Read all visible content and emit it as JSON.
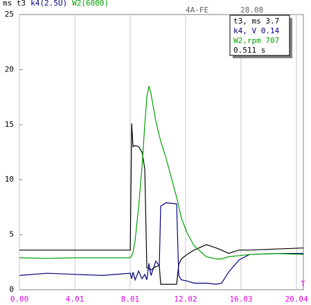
{
  "chart_data": {
    "type": "line",
    "engine": "4A-FE",
    "date": "28.08",
    "cursor_label": "T",
    "readout": [
      "t3, ms 3.7",
      "k4,  V 0.14",
      "W2,rpm 707",
      "0.511 s"
    ],
    "x": [
      0,
      2,
      4,
      6,
      8.02,
      8.12,
      8.22,
      8.37,
      8.62,
      8.87,
      9.07,
      9.22,
      9.37,
      9.52,
      9.87,
      10.12,
      10.22,
      10.62,
      11.37,
      11.52,
      11.72,
      12.12,
      12.63,
      13.53,
      14.23,
      14.63,
      15.13,
      15.88,
      16.63,
      18.64,
      20.54
    ],
    "series": [
      {
        "name": "ms t3",
        "color": "#000000",
        "values": [
          3.6,
          3.6,
          3.6,
          3.6,
          3.6,
          15.1,
          13.0,
          13.1,
          13.0,
          12.5,
          11.0,
          2.0,
          1.9,
          1.8,
          2.1,
          2.2,
          0.5,
          0.5,
          0.5,
          2.3,
          2.8,
          3.2,
          3.6,
          4.1,
          3.8,
          3.6,
          3.3,
          3.6,
          3.6,
          3.7,
          3.8
        ]
      },
      {
        "name": "k4(2.5U)",
        "color": "#00007f",
        "values": [
          1.3,
          1.5,
          1.4,
          1.3,
          1.5,
          1.0,
          1.6,
          0.9,
          1.7,
          1.0,
          1.4,
          0.9,
          2.4,
          1.3,
          2.6,
          2.2,
          7.6,
          7.9,
          7.8,
          1.3,
          0.9,
          0.8,
          0.6,
          0.6,
          0.5,
          0.6,
          1.6,
          2.7,
          3.2,
          3.3,
          3.3
        ]
      },
      {
        "name": "W2(6000)",
        "color": "#00a000",
        "values": [
          2.9,
          2.85,
          2.9,
          2.9,
          2.9,
          3.1,
          3.4,
          4.5,
          7.5,
          11.2,
          15.0,
          17.5,
          18.5,
          17.8,
          15.3,
          14.0,
          13.5,
          11.9,
          8.4,
          7.6,
          6.5,
          5.2,
          4.0,
          3.0,
          2.8,
          2.8,
          3.0,
          3.1,
          3.2,
          3.3,
          3.2
        ]
      }
    ],
    "xlim": [
      0,
      20.54
    ],
    "xticks": [
      {
        "value": 0,
        "label": "0.00"
      },
      4.01,
      8.01,
      12.02,
      16.03,
      20.04
    ],
    "ylim": [
      0,
      25
    ],
    "yticks": [
      0,
      5,
      10,
      15,
      20,
      25
    ],
    "grid": true
  }
}
